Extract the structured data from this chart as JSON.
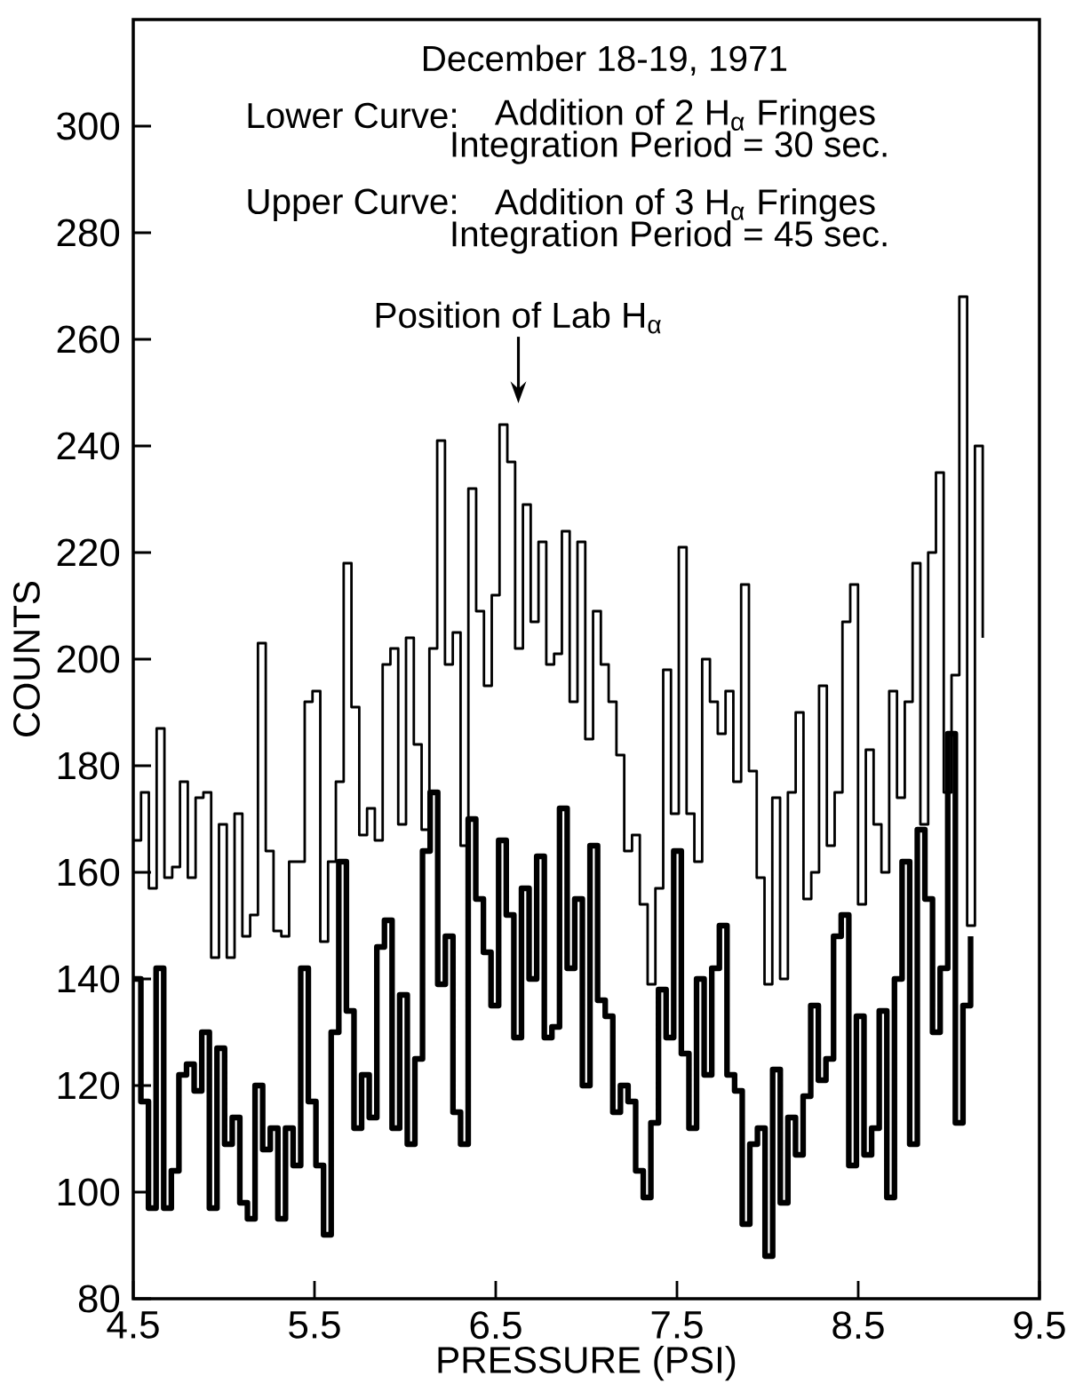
{
  "chart_data": {
    "type": "step",
    "title": "December 18-19, 1971",
    "xlabel": "PRESSURE (PSI)",
    "ylabel": "COUNTS",
    "xlim": [
      4.5,
      9.5
    ],
    "ylim": [
      80,
      320
    ],
    "xticks": [
      4.5,
      5.5,
      6.5,
      7.5,
      8.5,
      9.5
    ],
    "yticks": [
      80,
      100,
      120,
      140,
      160,
      180,
      200,
      220,
      240,
      260,
      280,
      300
    ],
    "annotations": [
      "Lower Curve:",
      "Addition of 2 H$_{α}$ Fringes",
      "Integration Period = 30 sec.",
      "Upper Curve:",
      "Addition of 3 H$_{α}$ Fringes",
      "Integration Period = 45 sec.",
      "Position of Lab H$_{α}$"
    ],
    "series": [
      {
        "color": "#000000",
        "x": [
          4.5,
          4.543,
          4.586,
          4.629,
          4.672,
          4.715,
          4.758,
          4.801,
          4.844,
          4.887,
          4.93,
          4.973,
          5.016,
          5.059,
          5.102,
          5.145,
          5.188,
          5.231,
          5.274,
          5.317,
          5.36,
          5.403,
          5.446,
          5.489,
          5.532,
          5.575,
          5.618,
          5.661,
          5.704,
          5.747,
          5.79,
          5.833,
          5.876,
          5.919,
          5.962,
          6.005,
          6.048,
          6.091,
          6.134,
          6.177,
          6.22,
          6.263,
          6.306,
          6.349,
          6.392,
          6.435,
          6.478,
          6.521,
          6.564,
          6.607,
          6.65,
          6.693,
          6.736,
          6.779,
          6.822,
          6.865,
          6.908,
          6.951,
          6.994,
          7.037,
          7.08,
          7.123,
          7.166,
          7.209,
          7.252,
          7.295,
          7.338,
          7.381,
          7.424,
          7.467,
          7.51,
          7.553,
          7.596,
          7.639,
          7.682,
          7.725,
          7.768,
          7.811,
          7.854,
          7.897,
          7.94,
          7.983,
          8.026,
          8.069,
          8.112,
          8.155,
          8.198,
          8.241,
          8.284,
          8.327,
          8.37,
          8.413,
          8.456,
          8.499,
          8.542,
          8.585,
          8.628,
          8.671,
          8.714,
          8.757,
          8.8,
          8.843,
          8.886,
          8.929,
          8.972,
          9.015,
          9.058,
          9.101,
          9.144,
          9.187
        ],
        "values": [
          166,
          175,
          157,
          187,
          159,
          161,
          177,
          159,
          174,
          175,
          144,
          169,
          144,
          171,
          148,
          152,
          203,
          164,
          149,
          148,
          162,
          162,
          192,
          194,
          147,
          162,
          177,
          218,
          191,
          167,
          172,
          166,
          199,
          202,
          169,
          204,
          184,
          168,
          202,
          241,
          199,
          205,
          165,
          232,
          209,
          195,
          212,
          244,
          237,
          202,
          229,
          207,
          222,
          199,
          201,
          224,
          192,
          222,
          185,
          209,
          199,
          192,
          182,
          164,
          167,
          154,
          139,
          157,
          198,
          171,
          221,
          171,
          162,
          200,
          192,
          186,
          194,
          177,
          214,
          179,
          159,
          139,
          174,
          140,
          175,
          190,
          155,
          160,
          195,
          165,
          175,
          207,
          214,
          154,
          183,
          169,
          160,
          194,
          174,
          192,
          218,
          169,
          220,
          235,
          175,
          197,
          268,
          150,
          240,
          204
        ]
      },
      {
        "color": "#000000",
        "x": [
          4.5,
          4.542,
          4.584,
          4.626,
          4.668,
          4.71,
          4.752,
          4.794,
          4.836,
          4.878,
          4.92,
          4.962,
          5.004,
          5.046,
          5.088,
          5.13,
          5.172,
          5.214,
          5.256,
          5.298,
          5.34,
          5.382,
          5.424,
          5.466,
          5.508,
          5.55,
          5.592,
          5.634,
          5.676,
          5.718,
          5.76,
          5.802,
          5.844,
          5.886,
          5.928,
          5.97,
          6.012,
          6.054,
          6.096,
          6.138,
          6.18,
          6.222,
          6.264,
          6.306,
          6.348,
          6.39,
          6.432,
          6.474,
          6.516,
          6.558,
          6.6,
          6.642,
          6.684,
          6.726,
          6.768,
          6.81,
          6.852,
          6.894,
          6.936,
          6.978,
          7.02,
          7.062,
          7.104,
          7.146,
          7.188,
          7.23,
          7.272,
          7.314,
          7.356,
          7.398,
          7.44,
          7.482,
          7.524,
          7.566,
          7.608,
          7.65,
          7.692,
          7.734,
          7.776,
          7.818,
          7.86,
          7.902,
          7.944,
          7.986,
          8.028,
          8.07,
          8.112,
          8.154,
          8.196,
          8.238,
          8.28,
          8.322,
          8.364,
          8.406,
          8.448,
          8.49,
          8.532,
          8.574,
          8.616,
          8.658,
          8.7,
          8.742,
          8.784,
          8.826,
          8.868,
          8.91,
          8.952,
          8.994,
          9.036,
          9.078,
          9.12
        ],
        "values": [
          140,
          117,
          97,
          142,
          97,
          104,
          122,
          124,
          119,
          130,
          97,
          127,
          109,
          114,
          98,
          95,
          120,
          108,
          112,
          95,
          112,
          105,
          142,
          117,
          105,
          92,
          130,
          162,
          134,
          112,
          122,
          114,
          146,
          151,
          112,
          137,
          109,
          125,
          164,
          175,
          139,
          148,
          115,
          109,
          170,
          155,
          145,
          135,
          166,
          152,
          129,
          157,
          140,
          163,
          129,
          131,
          172,
          142,
          155,
          120,
          165,
          136,
          133,
          115,
          120,
          117,
          104,
          99,
          113,
          138,
          129,
          164,
          126,
          112,
          140,
          122,
          142,
          150,
          122,
          119,
          94,
          109,
          112,
          88,
          123,
          98,
          114,
          107,
          118,
          135,
          121,
          125,
          148,
          152,
          105,
          133,
          107,
          112,
          134,
          99,
          140,
          162,
          109,
          168,
          155,
          130,
          142,
          186,
          113,
          135,
          148
        ]
      }
    ]
  }
}
